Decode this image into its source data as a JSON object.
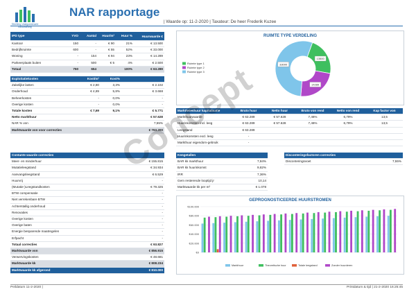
{
  "header": {
    "title": "NAR rapportage",
    "subtitle": "| Waarde op: 11-2-2020 | Taxateur: De heer Frederik Kuzee",
    "logo_text": "Stichting Vastgoedmarkt Beoordeling"
  },
  "ipd": {
    "headers": [
      "IPD type",
      "YVO",
      "Aantal",
      "Huur/m²",
      "Huur %",
      "Huurwaarde €"
    ],
    "rows": [
      [
        "Kantoor",
        "150",
        "-",
        "€ 90",
        "21%",
        "€ 13.500"
      ],
      [
        "Bedrijfsruimte",
        "600",
        "-",
        "€ 55",
        "52%",
        "€ 33.000"
      ],
      [
        "Woning",
        "-",
        "154",
        "€ 94",
        "23%",
        "€ 14.289"
      ],
      [
        "Parkeerplaats buiten",
        "-",
        "500",
        "€ 5",
        "4%",
        "€ 2.500"
      ]
    ],
    "total": [
      "Totaal",
      "750",
      "654",
      "",
      "100%",
      "€ 63.289"
    ]
  },
  "expl": {
    "headers": [
      "Exploitatiekosten",
      "Kost/m²",
      "Kost%",
      ""
    ],
    "rows": [
      [
        "Zakelijke lasten",
        "€ 2,80",
        "3,3%",
        "€ 2.102"
      ],
      [
        "Onderhoud",
        "€ 4,89",
        "5,8%",
        "€ 3.668"
      ],
      [
        "Beheerkosten",
        "-",
        "0,0%",
        "-"
      ],
      [
        "Overige kosten",
        "-",
        "0,0%",
        "-"
      ]
    ],
    "total": [
      "Totale kosten",
      "€ 7,69",
      "9,1%",
      "€ 5.771"
    ],
    "netto_huur": [
      "Netto markthuur",
      "€ 57.628"
    ],
    "nar": [
      "NAR % von",
      "7,55%"
    ],
    "mw": [
      "Marktwaarde von voor correcties",
      "€ 763.200"
    ]
  },
  "contante": {
    "header": "Contante waarde correcties",
    "rows": [
      [
        "Meer- en minderhuur",
        "€ 155.815"
      ],
      [
        "Mutatieleegstand",
        "€ 34.934"
      ],
      [
        "Aanvangsleegstand",
        "€ 6.529"
      ],
      [
        "Huurvrij",
        "-"
      ],
      [
        "(Mutatie-)Leegstandkosten",
        "€ 79.325"
      ],
      [
        "BTW compensatie",
        "-"
      ],
      [
        "Niet verrekenbare BTW",
        "-"
      ],
      [
        "Achterstallig onderhoud",
        "-"
      ],
      [
        "Renovaties",
        "-"
      ],
      [
        "Overige kosten",
        "-"
      ],
      [
        "Overige baten",
        "-"
      ],
      [
        "Energie besparende maatregelen",
        "-"
      ],
      [
        "Erfpacht",
        "-"
      ]
    ],
    "total": [
      "Totaal correcties",
      "€ 93.827"
    ],
    "mw_von": [
      "Marktwaarde von",
      "€ 856.915"
    ],
    "verw": [
      "Verwervingskosten",
      "€ 48.681"
    ],
    "mw_kk": [
      "Marktwaarde kk",
      "€ 808.234"
    ],
    "mw_afgerond": [
      "Marktwaarde kk afgerond",
      "€ 810.000"
    ]
  },
  "kap": {
    "headers": [
      "Markt/wieshuur kapitalisatie",
      "Bruto huur",
      "Netto huur",
      "Bruto von rend",
      "Netto von rend",
      "Kap factor von"
    ],
    "rows": [
      [
        "Markthuurwaarde",
        "€ 63.289",
        "€ 57.628",
        "7,46%",
        "6,79%",
        "13,5"
      ],
      [
        "Huurinkomsten incl. leeg",
        "€ 63.289",
        "€ 57.628",
        "7,46%",
        "6,79%",
        "13,5"
      ],
      [
        "Leegstand",
        "€ 63.289",
        "",
        "",
        "",
        ""
      ],
      [
        "Huurinkomsten excl. leeg",
        "-",
        "",
        "",
        "",
        ""
      ],
      [
        "Markthuur eigendom-gebruik",
        "-",
        "",
        "",
        "",
        ""
      ]
    ]
  },
  "kengetallen": {
    "header": "Kengetallen",
    "rows": [
      [
        "BAR kk markthuur",
        "7,84%"
      ],
      [
        "BAR kk huurinkomst",
        "9,82%"
      ],
      [
        "IRR",
        "7,36%"
      ],
      [
        "Gem resterende looptijd jr",
        "10,14"
      ],
      [
        "Marktwaarde kk per m²",
        "€ 1.078"
      ]
    ]
  },
  "disconto": {
    "header": "Disconteringsfactoren correcties",
    "rows": [
      [
        "Disconteringsvoet",
        "7,55%"
      ]
    ]
  },
  "pie": {
    "title": "RUIMTE TYPE VERDELING",
    "segments": [
      {
        "label": "Ruimte type 1",
        "value": 13500,
        "color": "#3fbf5f",
        "text": "13500"
      },
      {
        "label": "Ruimte type 2",
        "value": 14289,
        "color": "#b048c8",
        "text": "14289"
      },
      {
        "label": "Ruimte type 3",
        "value": 33000,
        "color": "#7fc5ea",
        "text": "33000"
      }
    ]
  },
  "bar": {
    "title": "GEPROGNOSTICEERDE HUURSTROMEN",
    "ylim": [
      0,
      100000
    ],
    "yticks": [
      "€100.000",
      "€80.000",
      "€60.000",
      "€40.000",
      "€20.000",
      "€0"
    ],
    "legend": [
      {
        "label": "Markthuur",
        "color": "#7fc5ea"
      },
      {
        "label": "Theoretische huur",
        "color": "#3fbf5f"
      },
      {
        "label": "Totale leegstand",
        "color": "#e0603a"
      },
      {
        "label": "Zonder huurderen",
        "color": "#b048c8"
      }
    ],
    "series": [
      {
        "name": "Markthuur",
        "color": "#7fc5ea",
        "values": [
          63000,
          64000,
          65000,
          66000,
          67000,
          68000,
          69000,
          70000,
          71000,
          72000,
          73000,
          74000,
          75000,
          76000,
          77000,
          78000,
          79000,
          80000
        ]
      },
      {
        "name": "Theoretische huur",
        "color": "#3fbf5f",
        "values": [
          76000,
          77000,
          78000,
          79000,
          80000,
          81000,
          82000,
          83000,
          84000,
          85000,
          86000,
          87000,
          88000,
          89000,
          90000,
          91000,
          92000,
          93000
        ]
      },
      {
        "name": "Totale leegstand",
        "color": "#e0603a",
        "values": [
          0,
          7000,
          0,
          0,
          0,
          0,
          0,
          0,
          0,
          0,
          0,
          0,
          0,
          0,
          0,
          0,
          0,
          0
        ]
      },
      {
        "name": "Zonder huurderen",
        "color": "#b048c8",
        "values": [
          78000,
          79000,
          80000,
          81000,
          82000,
          83000,
          84000,
          85000,
          86000,
          87000,
          88000,
          89000,
          90000,
          91000,
          92000,
          93000,
          94000,
          95000
        ]
      }
    ]
  },
  "watermark": "Concept",
  "footer": {
    "left": "Peildatum 11-2-2020 |",
    "right": "Printdatum & tijd | 21-2-2020 16:25:45"
  }
}
